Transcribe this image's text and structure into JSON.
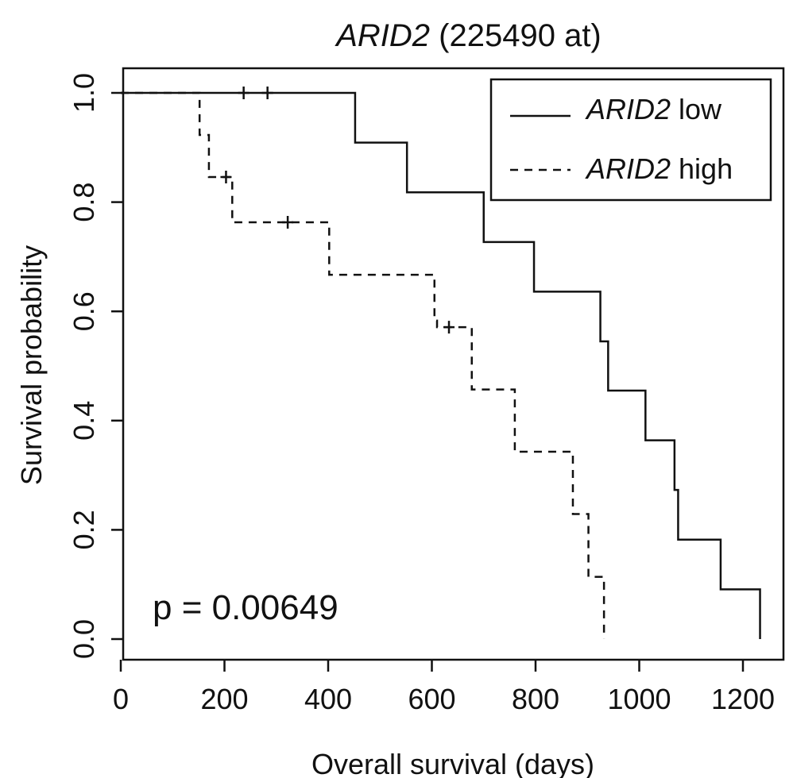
{
  "chart_data": {
    "type": "line",
    "title": {
      "gene": "ARID2",
      "probe": " (225490 at)"
    },
    "xlabel": "Overall survival (days)",
    "ylabel": "Survival probability",
    "xlim": [
      0,
      1200
    ],
    "ylim": [
      0.0,
      1.0
    ],
    "x_ticks": [
      "0",
      "200",
      "400",
      "600",
      "800",
      "1000",
      "1200"
    ],
    "x_tick_values": [
      0,
      200,
      400,
      600,
      800,
      1000,
      1200
    ],
    "y_ticks": [
      "0.0",
      "0.2",
      "0.4",
      "0.6",
      "0.8",
      "1.0"
    ],
    "y_tick_values": [
      0.0,
      0.2,
      0.4,
      0.6,
      0.8,
      1.0
    ],
    "grid": false,
    "legend_position": "top-right",
    "annotation": "p = 0.00649",
    "series": [
      {
        "name": {
          "gene": "ARID2",
          "suffix": " low"
        },
        "line_style": "solid",
        "steps": [
          [
            0,
            1.0
          ],
          [
            452,
            0.909
          ],
          [
            552,
            0.818
          ],
          [
            700,
            0.727
          ],
          [
            797,
            0.636
          ],
          [
            925,
            0.545
          ],
          [
            940,
            0.455
          ],
          [
            1012,
            0.364
          ],
          [
            1068,
            0.273
          ],
          [
            1075,
            0.182
          ],
          [
            1157,
            0.091
          ],
          [
            1233,
            0.0
          ]
        ],
        "end_x": 1233,
        "censored": [
          [
            237,
            1.0
          ],
          [
            283,
            1.0
          ]
        ]
      },
      {
        "name": {
          "gene": "ARID2",
          "suffix": " high"
        },
        "line_style": "dashed",
        "steps": [
          [
            0,
            1.0
          ],
          [
            152,
            0.923
          ],
          [
            170,
            0.846
          ],
          [
            215,
            0.763
          ],
          [
            402,
            0.667
          ],
          [
            605,
            0.583
          ],
          [
            610,
            0.571
          ],
          [
            677,
            0.457
          ],
          [
            760,
            0.343
          ],
          [
            872,
            0.229
          ],
          [
            902,
            0.114
          ],
          [
            932,
            0.0
          ]
        ],
        "end_x": 932,
        "censored": [
          [
            203,
            0.846
          ],
          [
            322,
            0.763
          ],
          [
            633,
            0.571
          ]
        ]
      }
    ]
  }
}
